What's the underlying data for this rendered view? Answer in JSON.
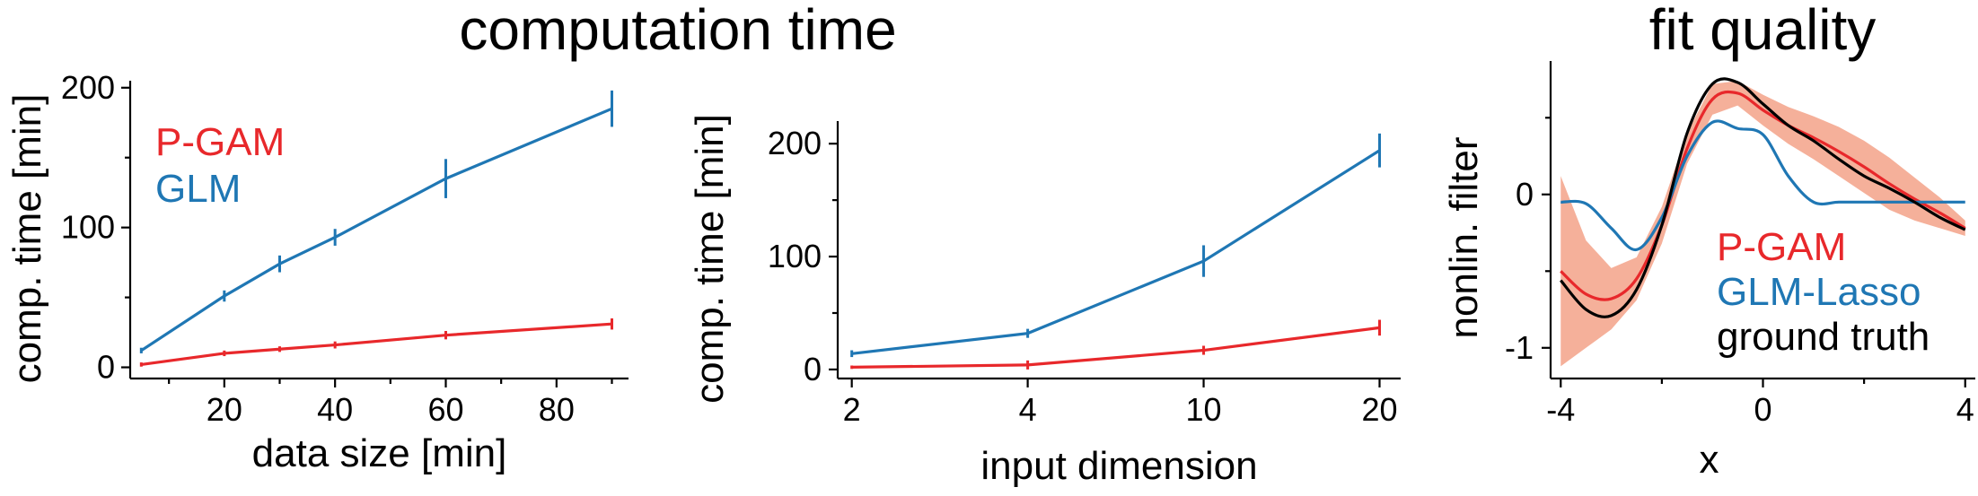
{
  "titles": {
    "left": "computation time",
    "right": "fit quality"
  },
  "colors": {
    "pgam": "#e8282b",
    "glm": "#1f77b4",
    "truth": "#000000",
    "band": "#f5b09a"
  },
  "chart_data": [
    {
      "type": "line",
      "xlabel": "data size [min]",
      "ylabel": "comp. time [min]",
      "xlim": [
        3,
        93
      ],
      "ylim": [
        -8,
        205
      ],
      "xticks": [
        20,
        40,
        60,
        80
      ],
      "xminor": [
        10,
        30,
        50,
        70,
        90
      ],
      "yticks": [
        0,
        100,
        200
      ],
      "yminor": [
        50,
        150
      ],
      "legend": "top-left",
      "series": [
        {
          "name": "P-GAM",
          "color": "#e8282b",
          "x": [
            5,
            20,
            30,
            40,
            60,
            90
          ],
          "y": [
            2,
            10,
            13,
            16,
            23,
            31
          ],
          "err": [
            1.5,
            2,
            2,
            2.5,
            3,
            4
          ]
        },
        {
          "name": "GLM",
          "color": "#1f77b4",
          "x": [
            5,
            20,
            30,
            40,
            60,
            90
          ],
          "y": [
            12,
            51,
            74,
            93,
            135,
            185
          ],
          "err": [
            2,
            4,
            6,
            6,
            14,
            13
          ]
        }
      ]
    },
    {
      "type": "line",
      "xlabel": "input dimension",
      "ylabel": "comp. time [min]",
      "categories": [
        "2",
        "4",
        "10",
        "20"
      ],
      "ylim": [
        -8,
        220
      ],
      "yticks": [
        0,
        100,
        200
      ],
      "yminor": [
        50,
        150
      ],
      "series": [
        {
          "name": "P-GAM",
          "color": "#e8282b",
          "y": [
            2,
            4,
            17,
            37
          ],
          "err": [
            1.5,
            4,
            4,
            7
          ]
        },
        {
          "name": "GLM",
          "color": "#1f77b4",
          "y": [
            14,
            32,
            96,
            194
          ],
          "err": [
            3,
            4,
            14,
            15
          ]
        }
      ]
    },
    {
      "type": "line",
      "xlabel": "x",
      "ylabel": "nonlin. filter",
      "xlim": [
        -4.2,
        4.2
      ],
      "ylim": [
        -1.2,
        0.87
      ],
      "xticks": [
        -4,
        0,
        4
      ],
      "xminor": [
        -2,
        2
      ],
      "yticks": [
        -1,
        0
      ],
      "yminor": [
        -0.5,
        0.5
      ],
      "legend": "bottom-right",
      "x": [
        -4,
        -3.5,
        -3,
        -2.5,
        -2,
        -1.5,
        -1,
        -0.5,
        0,
        0.5,
        1,
        1.5,
        2,
        2.5,
        3,
        3.5,
        4
      ],
      "series": [
        {
          "name": "P-GAM",
          "color": "#e8282b",
          "y": [
            -0.5,
            -0.65,
            -0.68,
            -0.55,
            -0.2,
            0.3,
            0.62,
            0.66,
            0.55,
            0.45,
            0.37,
            0.28,
            0.18,
            0.07,
            -0.03,
            -0.12,
            -0.22
          ],
          "band": [
            0.62,
            0.35,
            0.2,
            0.14,
            0.12,
            0.1,
            0.1,
            0.08,
            0.1,
            0.12,
            0.14,
            0.16,
            0.17,
            0.17,
            0.14,
            0.1,
            0.05
          ]
        },
        {
          "name": "GLM-Lasso",
          "color": "#1f77b4",
          "y": [
            -0.05,
            -0.06,
            -0.22,
            -0.36,
            -0.15,
            0.25,
            0.47,
            0.43,
            0.39,
            0.12,
            -0.05,
            -0.05,
            -0.05,
            -0.05,
            -0.05,
            -0.05,
            -0.05
          ]
        },
        {
          "name": "ground truth",
          "color": "#000000",
          "y": [
            -0.56,
            -0.75,
            -0.79,
            -0.62,
            -0.2,
            0.4,
            0.72,
            0.73,
            0.59,
            0.45,
            0.35,
            0.23,
            0.12,
            0.04,
            -0.05,
            -0.15,
            -0.23
          ]
        }
      ]
    }
  ]
}
